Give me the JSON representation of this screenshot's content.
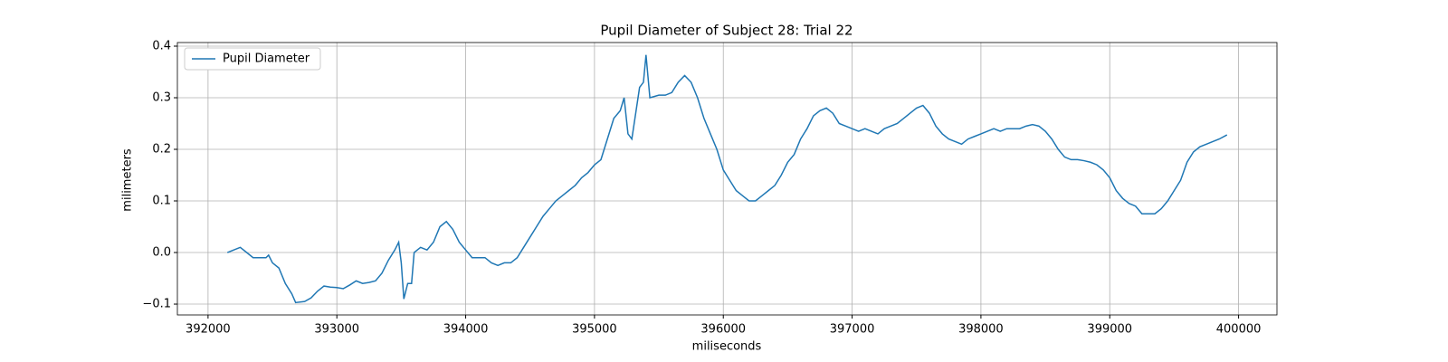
{
  "chart_data": {
    "type": "line",
    "title": "Pupil Diameter of Subject 28: Trial 22",
    "xlabel": "miliseconds",
    "ylabel": "milimeters",
    "x": [
      392150,
      392200,
      392250,
      392300,
      392350,
      392400,
      392450,
      392470,
      392500,
      392550,
      392600,
      392650,
      392680,
      392750,
      392800,
      392850,
      392900,
      392950,
      393000,
      393050,
      393100,
      393150,
      393200,
      393250,
      393300,
      393350,
      393400,
      393450,
      393480,
      393500,
      393520,
      393550,
      393580,
      393600,
      393650,
      393700,
      393750,
      393800,
      393850,
      393900,
      393950,
      394000,
      394050,
      394100,
      394150,
      394200,
      394250,
      394300,
      394350,
      394400,
      394450,
      394500,
      394550,
      394600,
      394650,
      394700,
      394750,
      394800,
      394850,
      394900,
      394950,
      395000,
      395050,
      395100,
      395150,
      395200,
      395230,
      395260,
      395290,
      395320,
      395350,
      395380,
      395400,
      395430,
      395500,
      395550,
      395600,
      395650,
      395700,
      395750,
      395800,
      395850,
      395900,
      395950,
      396000,
      396050,
      396100,
      396150,
      396200,
      396250,
      396300,
      396350,
      396400,
      396450,
      396500,
      396550,
      396600,
      396650,
      396700,
      396750,
      396800,
      396850,
      396900,
      396950,
      397000,
      397050,
      397100,
      397150,
      397200,
      397250,
      397300,
      397350,
      397400,
      397450,
      397500,
      397550,
      397600,
      397650,
      397700,
      397750,
      397800,
      397850,
      397900,
      397950,
      398000,
      398050,
      398100,
      398150,
      398200,
      398250,
      398300,
      398350,
      398400,
      398450,
      398500,
      398550,
      398600,
      398650,
      398700,
      398750,
      398800,
      398850,
      398900,
      398950,
      399000,
      399050,
      399100,
      399150,
      399200,
      399250,
      399300,
      399350,
      399400,
      399450,
      399500,
      399550,
      399600,
      399650,
      399700,
      399750,
      399800,
      399850,
      399910
    ],
    "series": [
      {
        "name": "Pupil Diameter",
        "color": "#1f77b4",
        "values": [
          0.0,
          0.005,
          0.01,
          0.0,
          -0.01,
          -0.01,
          -0.01,
          -0.005,
          -0.02,
          -0.03,
          -0.06,
          -0.08,
          -0.097,
          -0.095,
          -0.088,
          -0.075,
          -0.065,
          -0.067,
          -0.068,
          -0.07,
          -0.063,
          -0.055,
          -0.06,
          -0.058,
          -0.055,
          -0.04,
          -0.015,
          0.005,
          0.02,
          -0.02,
          -0.09,
          -0.06,
          -0.06,
          0.0,
          0.01,
          0.005,
          0.02,
          0.05,
          0.06,
          0.045,
          0.02,
          0.005,
          -0.01,
          -0.01,
          -0.01,
          -0.02,
          -0.025,
          -0.02,
          -0.02,
          -0.01,
          0.01,
          0.03,
          0.05,
          0.07,
          0.085,
          0.1,
          0.11,
          0.12,
          0.13,
          0.145,
          0.155,
          0.17,
          0.18,
          0.22,
          0.26,
          0.275,
          0.3,
          0.23,
          0.22,
          0.27,
          0.32,
          0.33,
          0.383,
          0.3,
          0.305,
          0.305,
          0.31,
          0.33,
          0.343,
          0.33,
          0.3,
          0.26,
          0.23,
          0.2,
          0.16,
          0.14,
          0.12,
          0.11,
          0.1,
          0.1,
          0.11,
          0.12,
          0.13,
          0.15,
          0.175,
          0.19,
          0.22,
          0.24,
          0.265,
          0.275,
          0.28,
          0.27,
          0.25,
          0.245,
          0.24,
          0.235,
          0.24,
          0.235,
          0.23,
          0.24,
          0.245,
          0.25,
          0.26,
          0.27,
          0.28,
          0.285,
          0.27,
          0.245,
          0.23,
          0.22,
          0.215,
          0.21,
          0.22,
          0.225,
          0.23,
          0.235,
          0.24,
          0.235,
          0.24,
          0.24,
          0.24,
          0.245,
          0.248,
          0.245,
          0.235,
          0.22,
          0.2,
          0.185,
          0.18,
          0.18,
          0.178,
          0.175,
          0.17,
          0.16,
          0.145,
          0.12,
          0.105,
          0.095,
          0.09,
          0.075,
          0.075,
          0.075,
          0.085,
          0.1,
          0.12,
          0.14,
          0.175,
          0.195,
          0.205,
          0.21,
          0.215,
          0.22,
          0.228
        ]
      }
    ],
    "xlim": [
      391762,
      400298
    ],
    "xticks": [
      392000,
      393000,
      394000,
      395000,
      396000,
      397000,
      398000,
      399000,
      400000
    ],
    "ylim": [
      -0.121,
      0.407
    ],
    "yticks": [
      {
        "value": -0.1,
        "label": "−0.1"
      },
      {
        "value": 0,
        "label": "0.0"
      },
      0.1,
      0.2,
      0.3,
      0.4
    ],
    "grid": true,
    "legend": "upper-left"
  }
}
